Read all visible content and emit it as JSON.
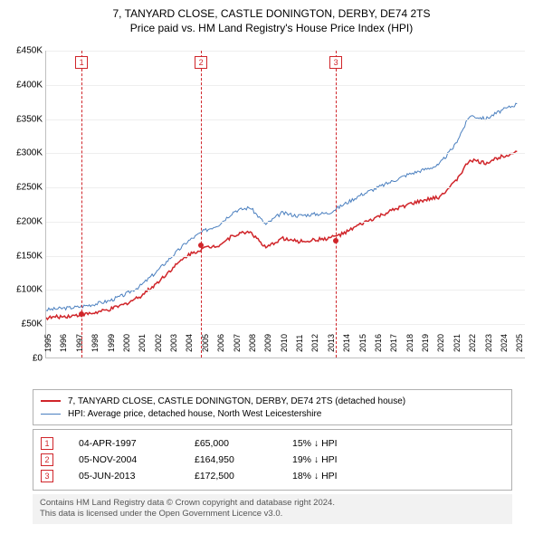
{
  "title_line1": "7, TANYARD CLOSE, CASTLE DONINGTON, DERBY, DE74 2TS",
  "title_line2": "Price paid vs. HM Land Registry's House Price Index (HPI)",
  "chart": {
    "type": "line",
    "background_color": "#ffffff",
    "grid_color": "#eeeeee",
    "axis_color": "#c0c0c0",
    "xlim": [
      1995,
      2025.5
    ],
    "ylim": [
      0,
      450000
    ],
    "ytick_step": 50000,
    "ytick_labels": [
      "£0",
      "£50K",
      "£100K",
      "£150K",
      "£200K",
      "£250K",
      "£300K",
      "£350K",
      "£400K",
      "£450K"
    ],
    "xticks": [
      1995,
      1996,
      1997,
      1998,
      1999,
      2000,
      2001,
      2002,
      2003,
      2004,
      2005,
      2006,
      2007,
      2008,
      2009,
      2010,
      2011,
      2012,
      2013,
      2014,
      2015,
      2016,
      2017,
      2018,
      2019,
      2020,
      2021,
      2022,
      2023,
      2024,
      2025
    ],
    "series": [
      {
        "name": "hpi",
        "color": "#4a7fbf",
        "line_width": 1,
        "y": [
          70000,
          72000,
          74000,
          78000,
          83000,
          92000,
          105000,
          125000,
          148000,
          170000,
          185000,
          195000,
          215000,
          220000,
          195000,
          212000,
          208000,
          210000,
          212000,
          225000,
          238000,
          248000,
          258000,
          268000,
          275000,
          282000,
          310000,
          355000,
          350000,
          362000,
          372000
        ]
      },
      {
        "name": "price_paid",
        "color": "#d0252a",
        "line_width": 1.5,
        "y": [
          58000,
          60000,
          62000,
          65000,
          70000,
          78000,
          90000,
          108000,
          130000,
          150000,
          160000,
          165000,
          180000,
          185000,
          160000,
          175000,
          170000,
          172000,
          175000,
          182000,
          195000,
          205000,
          215000,
          224000,
          230000,
          235000,
          256000,
          290000,
          285000,
          295000,
          302000
        ]
      }
    ],
    "sale_markers": [
      {
        "n": "1",
        "year": 1997.25,
        "price": 65000
      },
      {
        "n": "2",
        "year": 2004.85,
        "price": 164950
      },
      {
        "n": "3",
        "year": 2013.42,
        "price": 172500
      }
    ]
  },
  "legend": {
    "series1": "7, TANYARD CLOSE, CASTLE DONINGTON, DERBY, DE74 2TS (detached house)",
    "series2": "HPI: Average price, detached house, North West Leicestershire"
  },
  "sales": [
    {
      "n": "1",
      "date": "04-APR-1997",
      "price": "£65,000",
      "diff": "15% ↓ HPI"
    },
    {
      "n": "2",
      "date": "05-NOV-2004",
      "price": "£164,950",
      "diff": "19% ↓ HPI"
    },
    {
      "n": "3",
      "date": "05-JUN-2013",
      "price": "£172,500",
      "diff": "18% ↓ HPI"
    }
  ],
  "footer_line1": "Contains HM Land Registry data © Crown copyright and database right 2024.",
  "footer_line2": "This data is licensed under the Open Government Licence v3.0."
}
